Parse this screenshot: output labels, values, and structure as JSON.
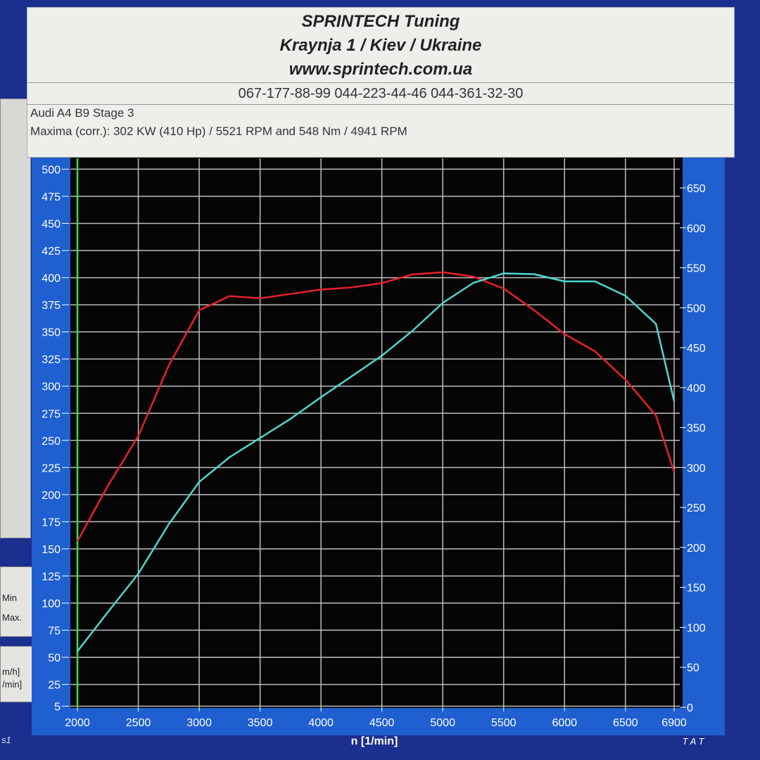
{
  "header": {
    "title": "SPRINTECH Tuning",
    "address": "Kraynja 1 / Kiev / Ukraine",
    "website": "www.sprintech.com.ua",
    "phones": "067-177-88-99 044-223-44-46 044-361-32-30"
  },
  "info": {
    "vehicle": "Audi A4 B9 Stage 3",
    "maxima": "Maxima (corr.):  302 KW (410 Hp) /  5521 RPM   and    548 Nm /  4941 RPM"
  },
  "side": {
    "min": "Min",
    "max": "Max.",
    "unit1": "m/h]",
    "unit2": "/min]",
    "tab": "s1"
  },
  "footer": {
    "brand": "T A T"
  },
  "chart_data": {
    "type": "line",
    "xlabel": "n  [1/min]",
    "x": [
      2000,
      2250,
      2500,
      2750,
      3000,
      3250,
      3500,
      3750,
      4000,
      4250,
      4500,
      4750,
      5000,
      5250,
      5500,
      5750,
      6000,
      6250,
      6500,
      6750,
      6900
    ],
    "xlim": [
      2000,
      6900
    ],
    "xticks": [
      2000,
      2500,
      3000,
      3500,
      4000,
      4500,
      5000,
      5500,
      6000,
      6500,
      6900
    ],
    "ylim": [
      4,
      510
    ],
    "yticks": [
      5,
      25,
      50,
      75,
      100,
      125,
      150,
      175,
      200,
      225,
      250,
      275,
      300,
      325,
      350,
      375,
      400,
      425,
      450,
      475,
      500
    ],
    "y2lim": [
      0,
      687
    ],
    "y2ticks": [
      0,
      50,
      100,
      150,
      200,
      250,
      300,
      350,
      400,
      450,
      500,
      550,
      600,
      650
    ],
    "grid": true,
    "series": [
      {
        "color": "#e8202a",
        "values": [
          157,
          208,
          254,
          319,
          370,
          383,
          381,
          385,
          389,
          391,
          395,
          403,
          405,
          401,
          390,
          370,
          348,
          332,
          306,
          273,
          221
        ]
      },
      {
        "color": "#4fd6cf",
        "axis": "y2",
        "values": [
          70,
          119,
          167,
          229,
          282,
          313,
          337,
          361,
          388,
          414,
          440,
          471,
          506,
          531,
          543,
          542,
          533,
          533,
          515,
          480,
          383
        ]
      }
    ]
  }
}
